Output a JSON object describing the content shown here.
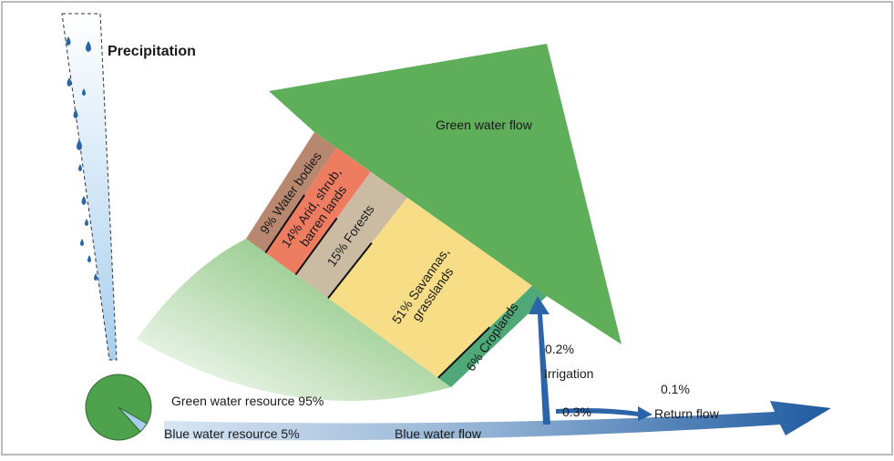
{
  "precipitation": {
    "label": "Precipitation"
  },
  "green_water_flow": {
    "label": "Green water flow",
    "segments": [
      {
        "lines": [
          "9% Water bodies"
        ],
        "value": 9,
        "color": "#b8876f"
      },
      {
        "lines": [
          "14% Arid, shrub,",
          "barren lands"
        ],
        "value": 14,
        "color": "#ee7c60"
      },
      {
        "lines": [
          "15% Forests"
        ],
        "value": 15,
        "color": "#cbbba3"
      },
      {
        "lines": [
          "51% Savannas,",
          "grasslands"
        ],
        "value": 51,
        "color": "#f6dd86"
      },
      {
        "lines": [
          "6% Croplands"
        ],
        "value": 6,
        "color": "#4ea877"
      }
    ]
  },
  "resources": [
    {
      "label": "Green water resource 95%",
      "value": 95,
      "color": "#4ea24e"
    },
    {
      "label": "Blue water resource 5%",
      "value": 5,
      "color": "#a9cce8"
    }
  ],
  "irrigation": {
    "percent": "0.2%",
    "label": "Irrigation"
  },
  "return_flow": {
    "percent_in": "0.3%",
    "percent_out": "0.1%",
    "label": "Return flow"
  },
  "blue_water_flow": {
    "label": "Blue water flow"
  }
}
